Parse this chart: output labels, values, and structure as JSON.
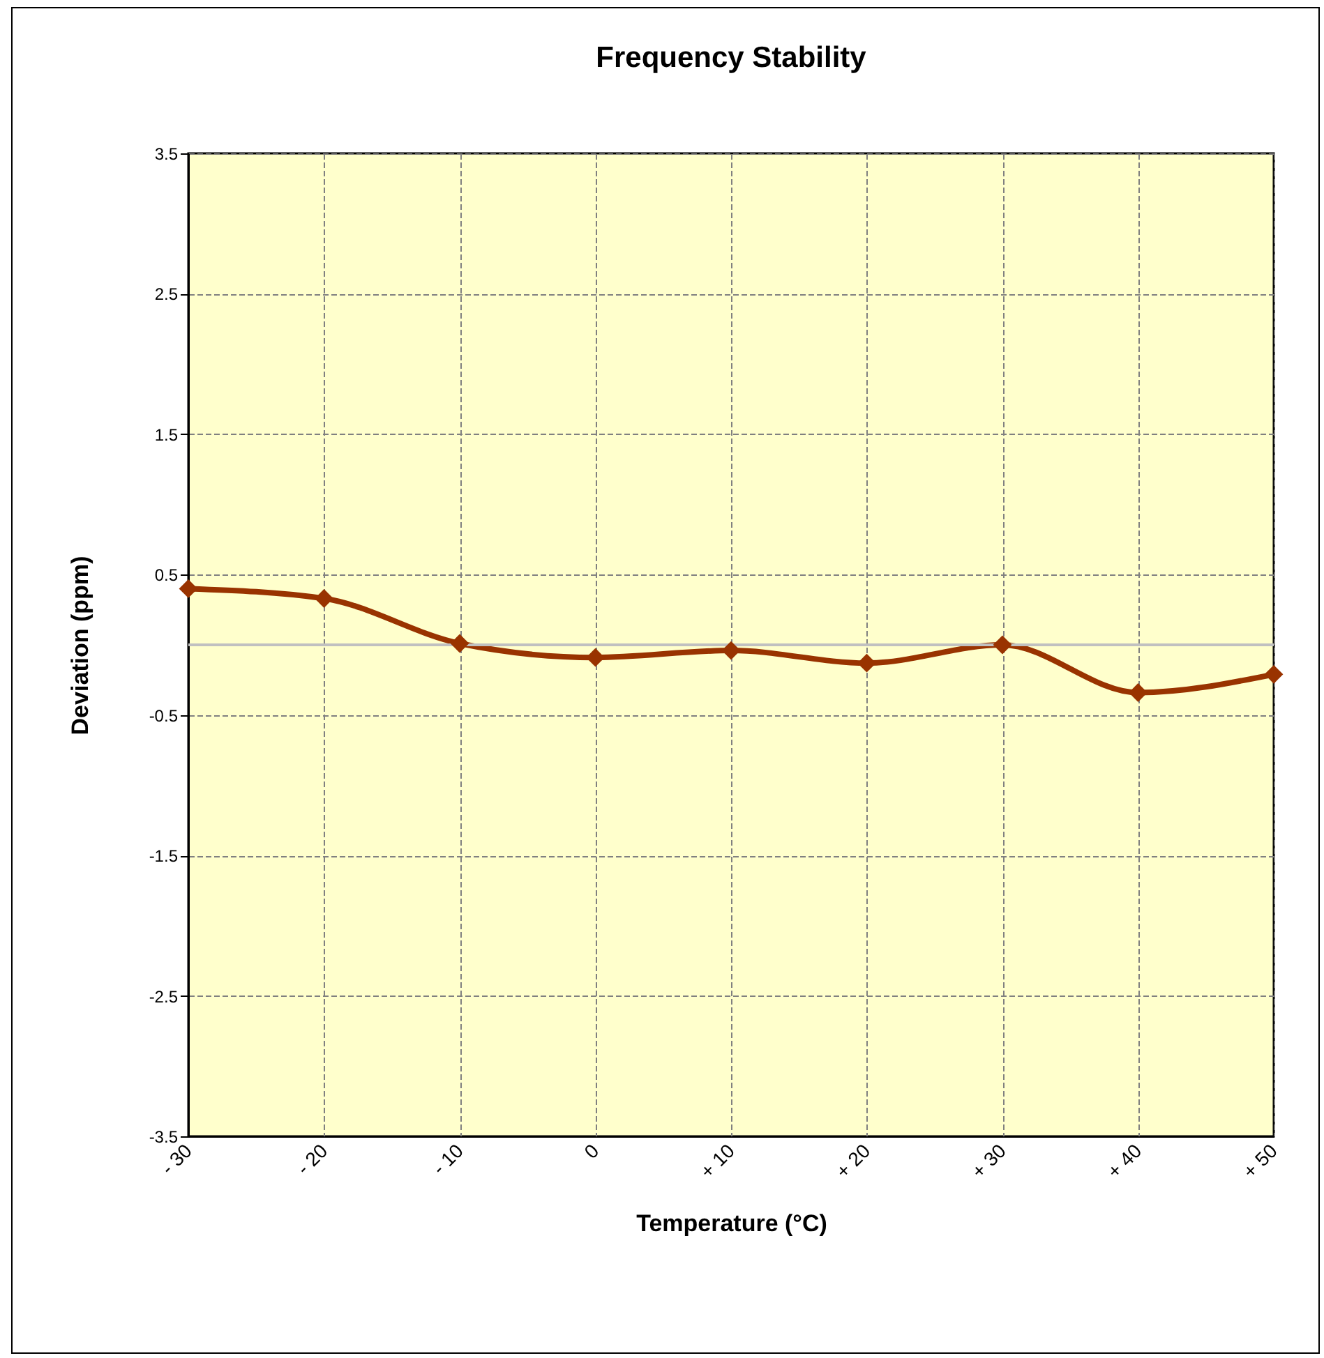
{
  "chart_data": {
    "type": "line",
    "title": "Frequency Stability",
    "xlabel": "Temperature (°C)",
    "ylabel": "Deviation (ppm)",
    "categories": [
      "- 30",
      "- 20",
      "- 10",
      "0",
      "+ 10",
      "+ 20",
      "+ 30",
      "+ 40",
      "+ 50"
    ],
    "series": [
      {
        "color": "#993300",
        "values": [
          0.4,
          0.33,
          0.01,
          -0.09,
          -0.04,
          -0.13,
          0.0,
          -0.34,
          -0.21
        ]
      }
    ],
    "ylim": [
      -3.5,
      3.5
    ],
    "yticks": [
      -3.5,
      -2.5,
      -1.5,
      -0.5,
      0.5,
      1.5,
      2.5,
      3.5
    ],
    "ref_lines": [
      {
        "axis": "y",
        "value": 0,
        "color": "#c0c0c0"
      }
    ],
    "grid": true,
    "marker": "diamond",
    "line_style": "solid",
    "legend": false
  }
}
